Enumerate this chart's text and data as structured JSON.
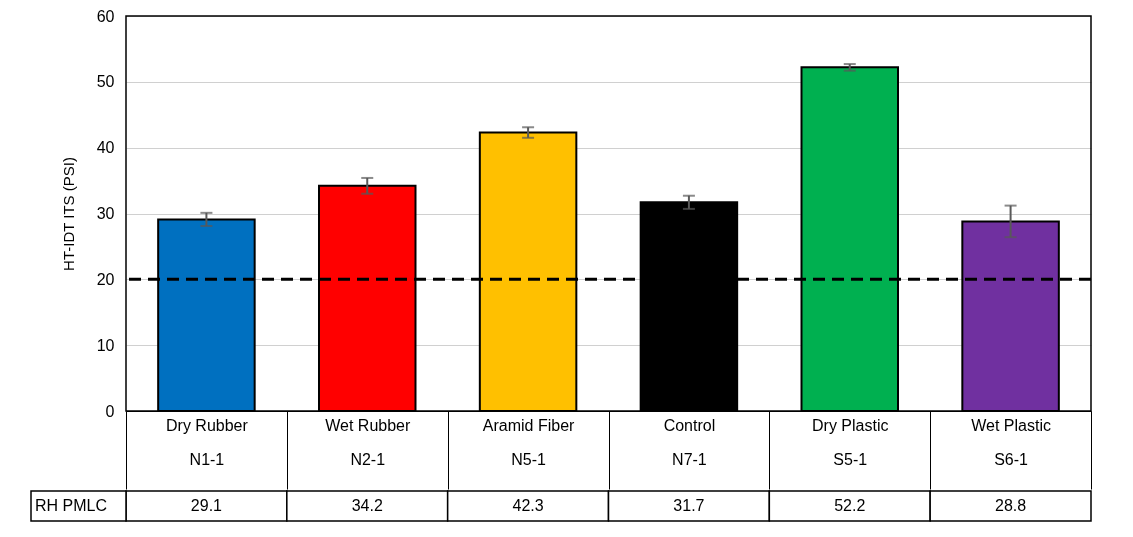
{
  "chart_data": {
    "type": "bar",
    "ylabel": "HT-IDT ITS (PSI)",
    "categories": [
      "Dry Rubber\nN1-1",
      "Wet Rubber\nN2-1",
      "Aramid Fiber\nN5-1",
      "Control\nN7-1",
      "Dry Plastic\nS5-1",
      "Wet Plastic\nS6-1"
    ],
    "series": [
      {
        "name": "RH PMLC",
        "colors": [
          "#0070c0",
          "#ff0000",
          "#ffc000",
          "#000000",
          "#00b050",
          "#7030a0"
        ],
        "values": [
          29.1,
          34.2,
          42.3,
          31.7,
          52.2,
          28.8
        ],
        "errors": [
          1.0,
          1.2,
          0.8,
          1.0,
          0.5,
          2.4
        ]
      }
    ],
    "ylim": [
      0,
      60
    ],
    "yticks": [
      0,
      10,
      20,
      30,
      40,
      50,
      60
    ],
    "grid": "y",
    "data_labels": true,
    "ref_lines": [
      {
        "axis": "y",
        "value": 20,
        "color": "#000000",
        "line_style": "dashed"
      }
    ]
  }
}
